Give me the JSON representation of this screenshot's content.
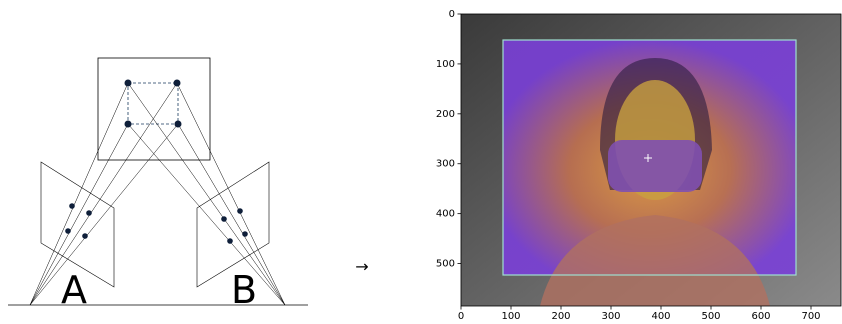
{
  "diagram": {
    "labels": [
      "A",
      "B"
    ],
    "arrow": "→"
  },
  "chart_data": {
    "type": "image",
    "xlim": [
      0,
      760
    ],
    "ylim": [
      585,
      0
    ],
    "xticks": [
      0,
      100,
      200,
      300,
      400,
      500,
      600,
      700
    ],
    "yticks": [
      0,
      100,
      200,
      300,
      400,
      500
    ]
  }
}
